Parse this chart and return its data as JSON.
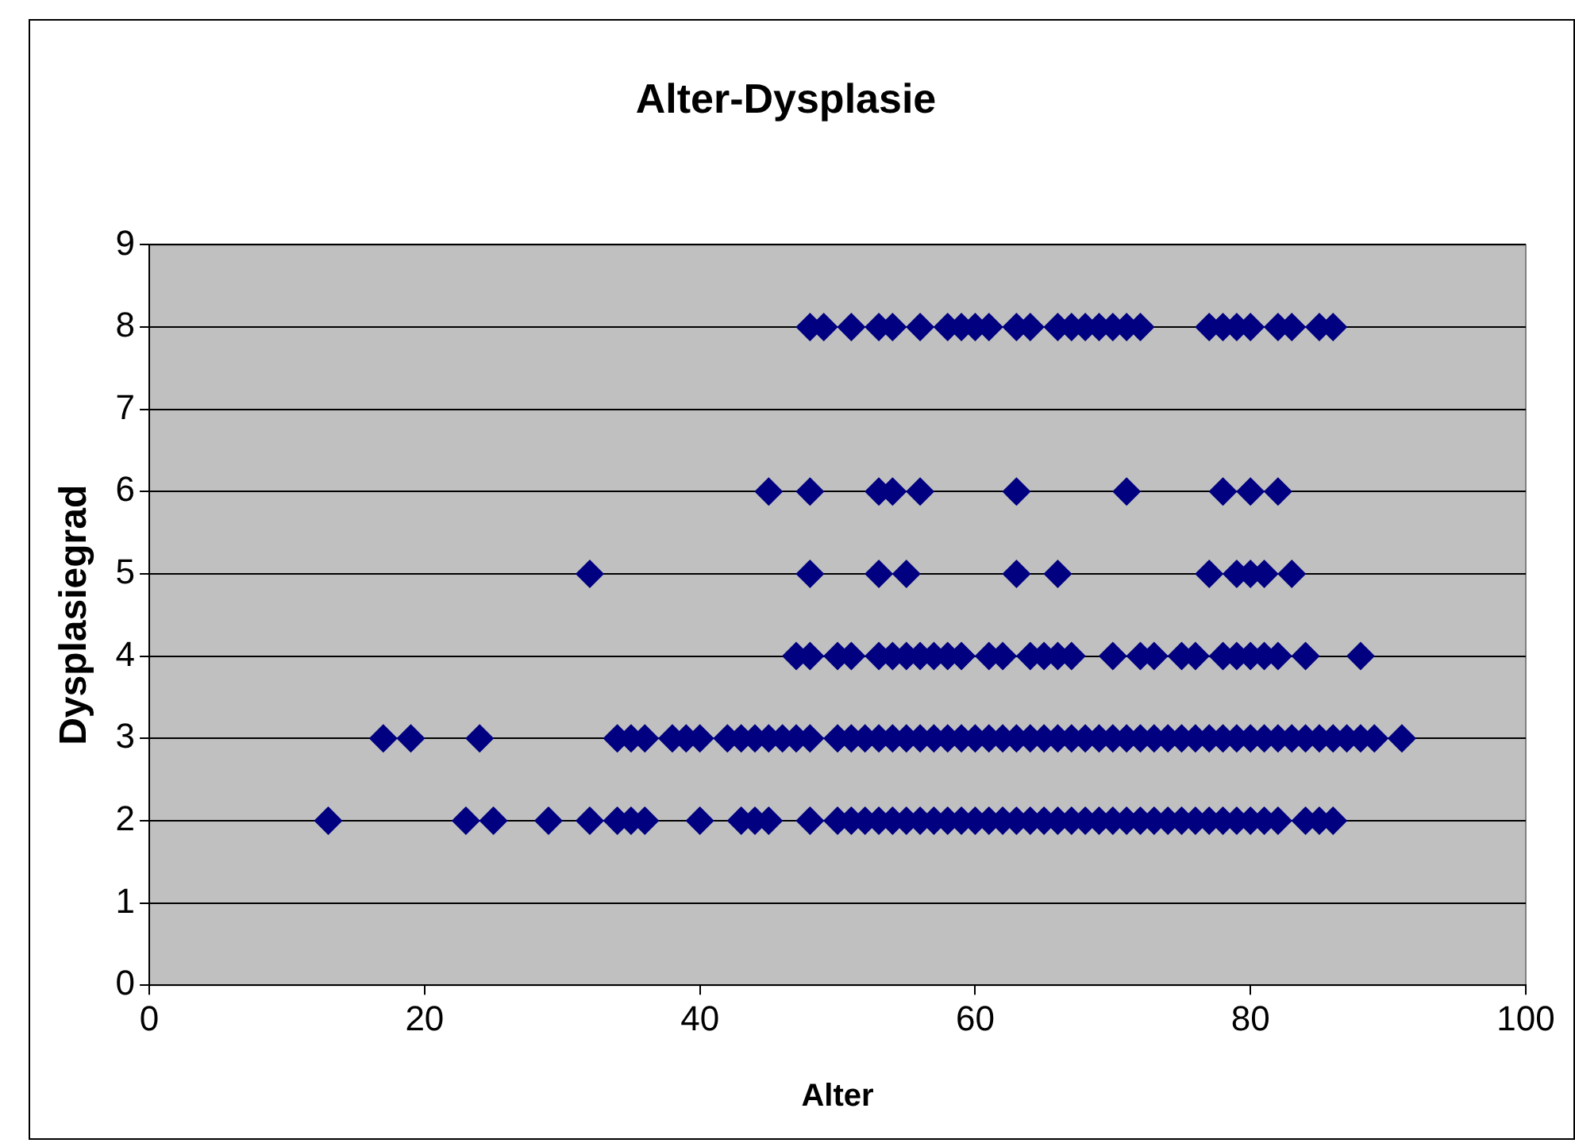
{
  "chart_data": {
    "type": "scatter",
    "title": "Alter-Dysplasie",
    "xlabel": "Alter",
    "ylabel": "Dysplasiegrad",
    "marker": "diamond",
    "grid": "y",
    "legend": false,
    "xlim": [
      0,
      100
    ],
    "xticks": [
      0,
      20,
      40,
      60,
      80,
      100
    ],
    "ylim": [
      0,
      9
    ],
    "yticks": [
      0,
      1,
      2,
      3,
      4,
      5,
      6,
      7,
      8,
      9
    ],
    "series": [
      {
        "color": "#000080",
        "x": [
          48,
          49,
          51,
          53,
          54,
          56,
          58,
          59,
          60,
          61,
          63,
          64,
          66,
          67,
          68,
          69,
          70,
          71,
          72,
          77,
          78,
          79,
          80,
          82,
          83,
          85,
          86
        ],
        "values": [
          8,
          8,
          8,
          8,
          8,
          8,
          8,
          8,
          8,
          8,
          8,
          8,
          8,
          8,
          8,
          8,
          8,
          8,
          8,
          8,
          8,
          8,
          8,
          8,
          8,
          8,
          8
        ]
      },
      {
        "color": "#000080",
        "x": [
          45,
          48,
          53,
          54,
          56,
          63,
          71,
          78,
          80,
          82
        ],
        "values": [
          6,
          6,
          6,
          6,
          6,
          6,
          6,
          6,
          6,
          6
        ]
      },
      {
        "color": "#000080",
        "x": [
          32,
          48,
          53,
          55,
          63,
          66,
          77,
          79,
          80,
          81,
          83
        ],
        "values": [
          5,
          5,
          5,
          5,
          5,
          5,
          5,
          5,
          5,
          5,
          5
        ]
      },
      {
        "color": "#000080",
        "x": [
          47,
          48,
          50,
          51,
          53,
          54,
          55,
          56,
          57,
          58,
          59,
          61,
          62,
          64,
          65,
          66,
          67,
          70,
          72,
          73,
          75,
          76,
          78,
          79,
          80,
          81,
          82,
          84,
          88
        ],
        "values": [
          4,
          4,
          4,
          4,
          4,
          4,
          4,
          4,
          4,
          4,
          4,
          4,
          4,
          4,
          4,
          4,
          4,
          4,
          4,
          4,
          4,
          4,
          4,
          4,
          4,
          4,
          4,
          4,
          4
        ]
      },
      {
        "color": "#000080",
        "x": [
          17,
          19,
          24,
          34,
          35,
          36,
          38,
          39,
          40,
          42,
          43,
          44,
          45,
          46,
          47,
          48,
          50,
          51,
          52,
          53,
          54,
          55,
          56,
          57,
          58,
          59,
          60,
          61,
          62,
          63,
          64,
          65,
          66,
          67,
          68,
          69,
          70,
          71,
          72,
          73,
          74,
          75,
          76,
          77,
          78,
          79,
          80,
          81,
          82,
          83,
          84,
          85,
          86,
          87,
          88,
          89,
          91
        ],
        "values": [
          3,
          3,
          3,
          3,
          3,
          3,
          3,
          3,
          3,
          3,
          3,
          3,
          3,
          3,
          3,
          3,
          3,
          3,
          3,
          3,
          3,
          3,
          3,
          3,
          3,
          3,
          3,
          3,
          3,
          3,
          3,
          3,
          3,
          3,
          3,
          3,
          3,
          3,
          3,
          3,
          3,
          3,
          3,
          3,
          3,
          3,
          3,
          3,
          3,
          3,
          3,
          3,
          3,
          3,
          3,
          3,
          3
        ]
      },
      {
        "color": "#000080",
        "x": [
          13,
          23,
          25,
          29,
          32,
          34,
          35,
          36,
          40,
          43,
          44,
          45,
          48,
          50,
          51,
          52,
          53,
          54,
          55,
          56,
          57,
          58,
          59,
          60,
          61,
          62,
          63,
          64,
          65,
          66,
          67,
          68,
          69,
          70,
          71,
          72,
          73,
          74,
          75,
          76,
          77,
          78,
          79,
          80,
          81,
          82,
          84,
          85,
          86
        ],
        "values": [
          2,
          2,
          2,
          2,
          2,
          2,
          2,
          2,
          2,
          2,
          2,
          2,
          2,
          2,
          2,
          2,
          2,
          2,
          2,
          2,
          2,
          2,
          2,
          2,
          2,
          2,
          2,
          2,
          2,
          2,
          2,
          2,
          2,
          2,
          2,
          2,
          2,
          2,
          2,
          2,
          2,
          2,
          2,
          2,
          2,
          2,
          2,
          2,
          2
        ]
      }
    ]
  }
}
